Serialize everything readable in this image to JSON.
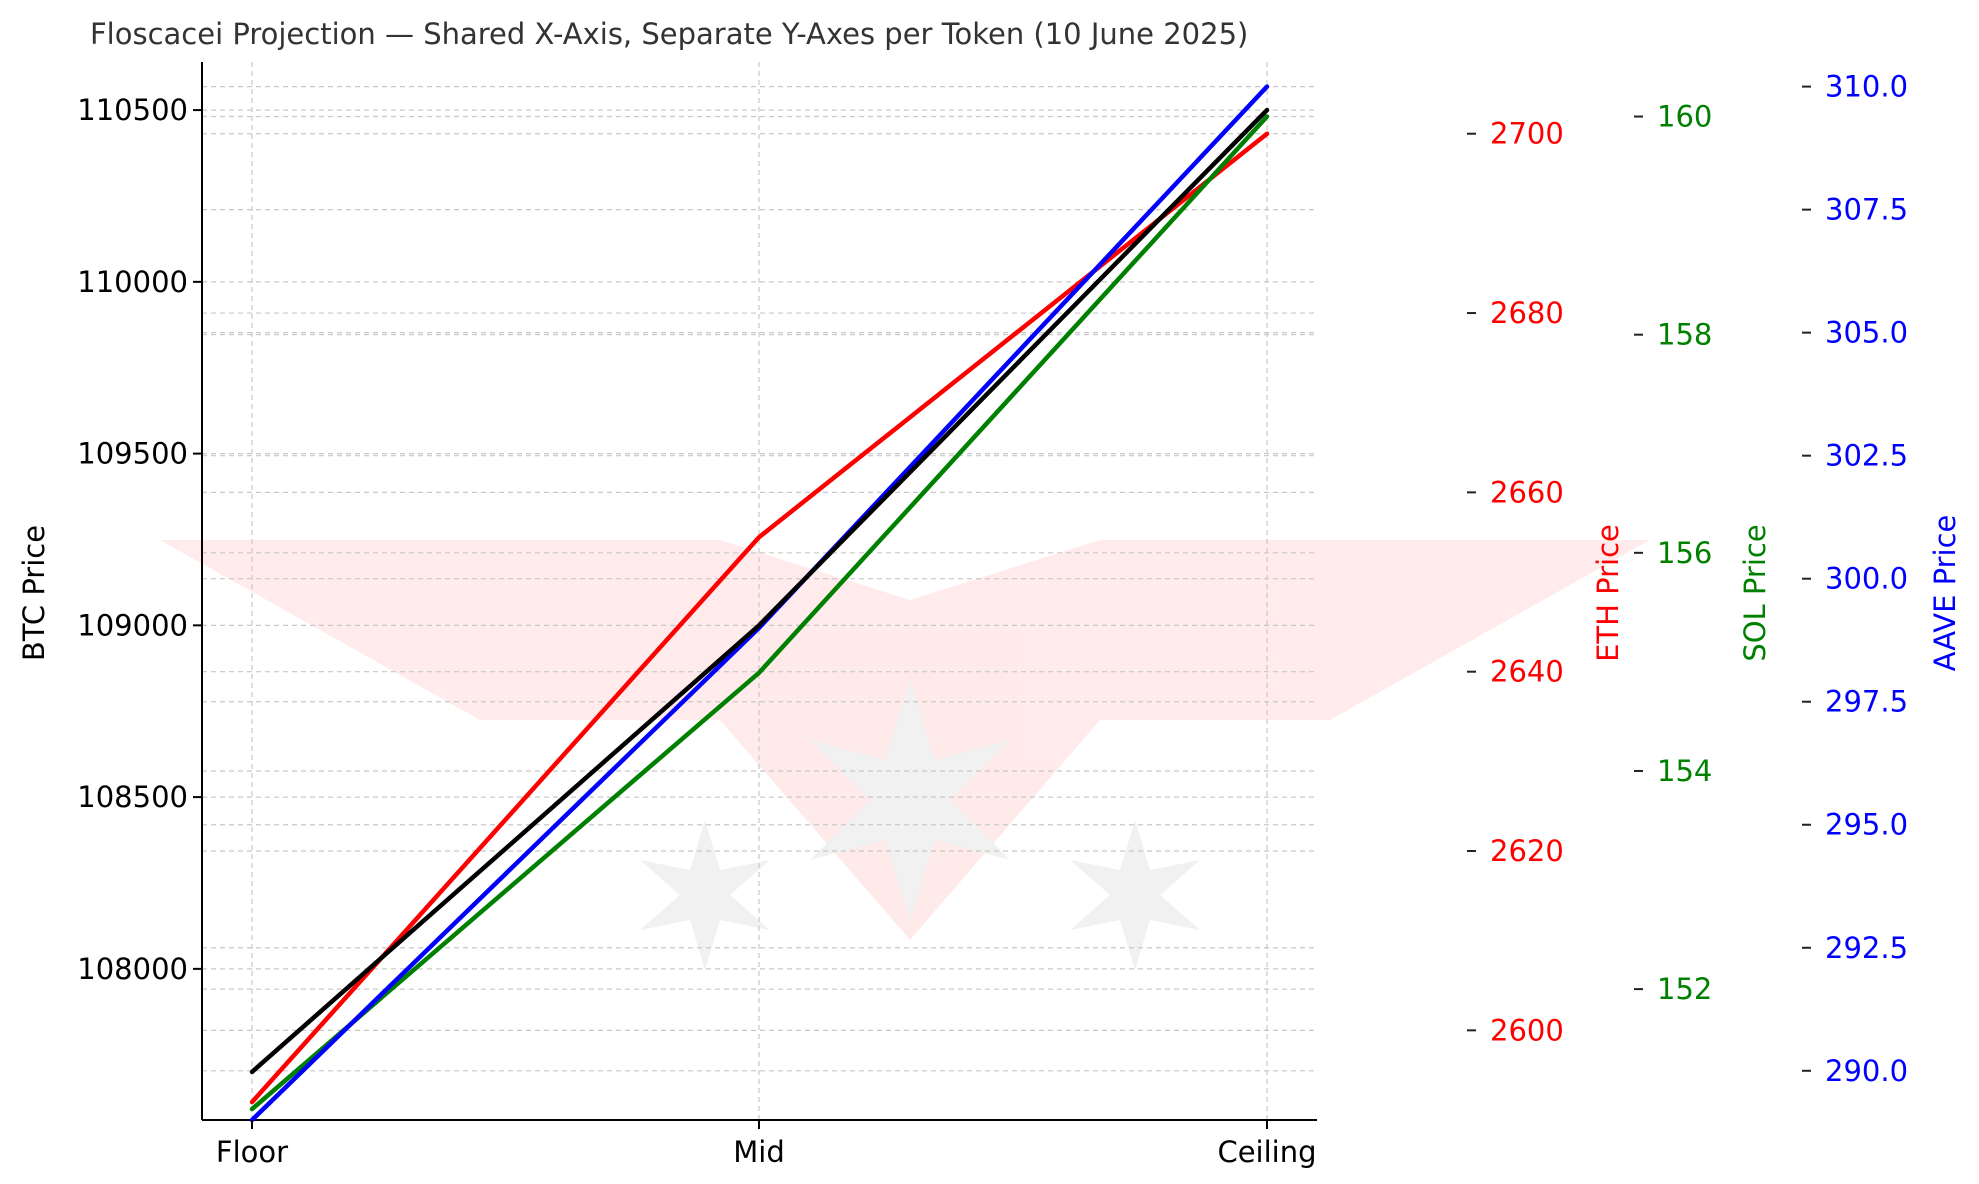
{
  "chart_data": {
    "type": "line",
    "title": "Floscacei Projection — Shared X-Axis, Separate Y-Axes per Token (10 June 2025)",
    "categories": [
      "Floor",
      "Mid",
      "Ceiling"
    ],
    "grid": true,
    "axes": [
      {
        "id": "btc",
        "label": "BTC Price",
        "color": "#000000",
        "ylim": [
          107560,
          110640
        ],
        "ticks": [
          108000,
          108500,
          109000,
          109500,
          110000,
          110500
        ],
        "tick_labels": [
          "108000",
          "108500",
          "109000",
          "109500",
          "110000",
          "110500"
        ]
      },
      {
        "id": "eth",
        "label": "ETH Price",
        "color": "#ff0000",
        "ylim": [
          2590,
          2708
        ],
        "ticks": [
          2600,
          2620,
          2640,
          2660,
          2680,
          2700
        ],
        "tick_labels": [
          "2600",
          "2620",
          "2640",
          "2660",
          "2680",
          "2700"
        ]
      },
      {
        "id": "sol",
        "label": "SOL Price",
        "color": "#008000",
        "ylim": [
          150.8,
          160.5
        ],
        "ticks": [
          152,
          154,
          156,
          158,
          160
        ],
        "tick_labels": [
          "152",
          "154",
          "156",
          "158",
          "160"
        ]
      },
      {
        "id": "aave",
        "label": "AAVE Price",
        "color": "#0000ff",
        "ylim": [
          289,
          310.5
        ],
        "ticks": [
          290.0,
          292.5,
          295.0,
          297.5,
          300.0,
          302.5,
          305.0,
          307.5,
          310.0
        ],
        "tick_labels": [
          "290.0",
          "292.5",
          "295.0",
          "297.5",
          "300.0",
          "302.5",
          "305.0",
          "307.5",
          "310.0"
        ]
      }
    ],
    "series": [
      {
        "axis": "eth",
        "color": "#ff0000",
        "values": [
          2592,
          2655,
          2700
        ]
      },
      {
        "axis": "sol",
        "color": "#008000",
        "values": [
          150.9,
          154.9,
          160
        ]
      },
      {
        "axis": "aave",
        "color": "#0000ff",
        "values": [
          289,
          299,
          310
        ]
      },
      {
        "axis": "btc",
        "color": "#000000",
        "values": [
          107700,
          109000,
          110500
        ]
      }
    ]
  }
}
